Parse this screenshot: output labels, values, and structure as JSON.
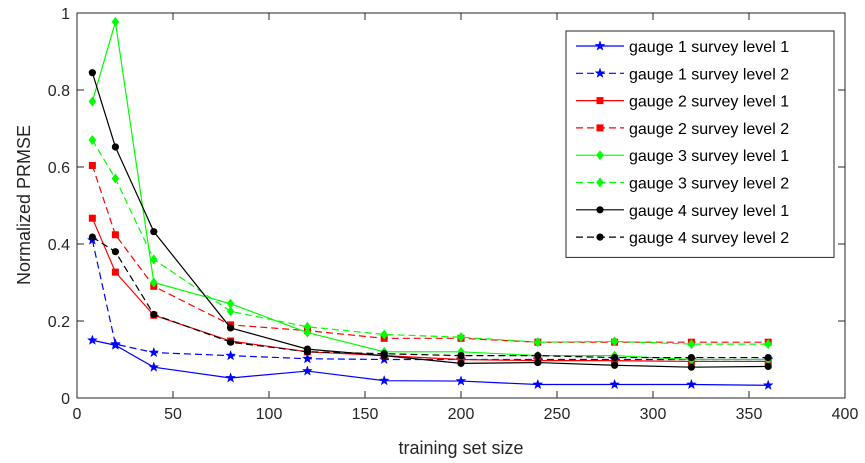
{
  "chart_data": {
    "type": "line",
    "title": "",
    "xlabel": "training set size",
    "ylabel": "Normalized PRMSE",
    "xlim": [
      0,
      400
    ],
    "ylim": [
      0,
      1
    ],
    "xticks": [
      0,
      50,
      100,
      150,
      200,
      250,
      300,
      350,
      400
    ],
    "yticks": [
      0,
      0.2,
      0.4,
      0.6,
      0.8,
      1
    ],
    "xtick_labels": [
      "0",
      "50",
      "100",
      "150",
      "200",
      "250",
      "300",
      "350",
      "400"
    ],
    "ytick_labels": [
      "0",
      "0.2",
      "0.4",
      "0.6",
      "0.8",
      "1"
    ],
    "grid": false,
    "legend_position": "top-right",
    "x": [
      8,
      20,
      40,
      80,
      120,
      160,
      200,
      240,
      280,
      320,
      360
    ],
    "series": [
      {
        "name": "gauge 1 survey level 1",
        "color": "#0000ff",
        "dash": "solid",
        "marker": "star",
        "values": [
          0.15,
          0.137,
          0.08,
          0.052,
          0.07,
          0.045,
          0.044,
          0.035,
          0.035,
          0.035,
          0.033
        ]
      },
      {
        "name": "gauge 1 survey level 2",
        "color": "#0000ff",
        "dash": "dashed",
        "marker": "star",
        "values": [
          0.41,
          0.14,
          0.118,
          0.11,
          0.102,
          0.1,
          0.1,
          0.1,
          0.1,
          0.1,
          0.1
        ]
      },
      {
        "name": "gauge 2 survey level 1",
        "color": "#ff0000",
        "dash": "solid",
        "marker": "square",
        "values": [
          0.467,
          0.327,
          0.215,
          0.148,
          0.12,
          0.11,
          0.1,
          0.097,
          0.097,
          0.095,
          0.095
        ]
      },
      {
        "name": "gauge 2 survey level 2",
        "color": "#ff0000",
        "dash": "dashed",
        "marker": "square",
        "values": [
          0.604,
          0.424,
          0.29,
          0.19,
          0.175,
          0.155,
          0.155,
          0.145,
          0.145,
          0.145,
          0.145
        ]
      },
      {
        "name": "gauge 3 survey level 1",
        "color": "#00ff00",
        "dash": "solid",
        "marker": "diamond",
        "values": [
          0.77,
          0.977,
          0.3,
          0.245,
          0.17,
          0.12,
          0.12,
          0.11,
          0.11,
          0.1,
          0.1
        ]
      },
      {
        "name": "gauge 3 survey level 2",
        "color": "#00ff00",
        "dash": "dashed",
        "marker": "diamond",
        "values": [
          0.67,
          0.57,
          0.36,
          0.225,
          0.185,
          0.165,
          0.158,
          0.145,
          0.147,
          0.14,
          0.14
        ]
      },
      {
        "name": "gauge 4 survey level 1",
        "color": "#000000",
        "dash": "solid",
        "marker": "circle",
        "values": [
          0.845,
          0.652,
          0.432,
          0.182,
          0.127,
          0.11,
          0.09,
          0.092,
          0.085,
          0.08,
          0.082
        ]
      },
      {
        "name": "gauge 4 survey level 2",
        "color": "#000000",
        "dash": "dashed",
        "marker": "circle",
        "values": [
          0.418,
          0.38,
          0.217,
          0.145,
          0.12,
          0.115,
          0.11,
          0.11,
          0.105,
          0.105,
          0.105
        ]
      }
    ]
  }
}
